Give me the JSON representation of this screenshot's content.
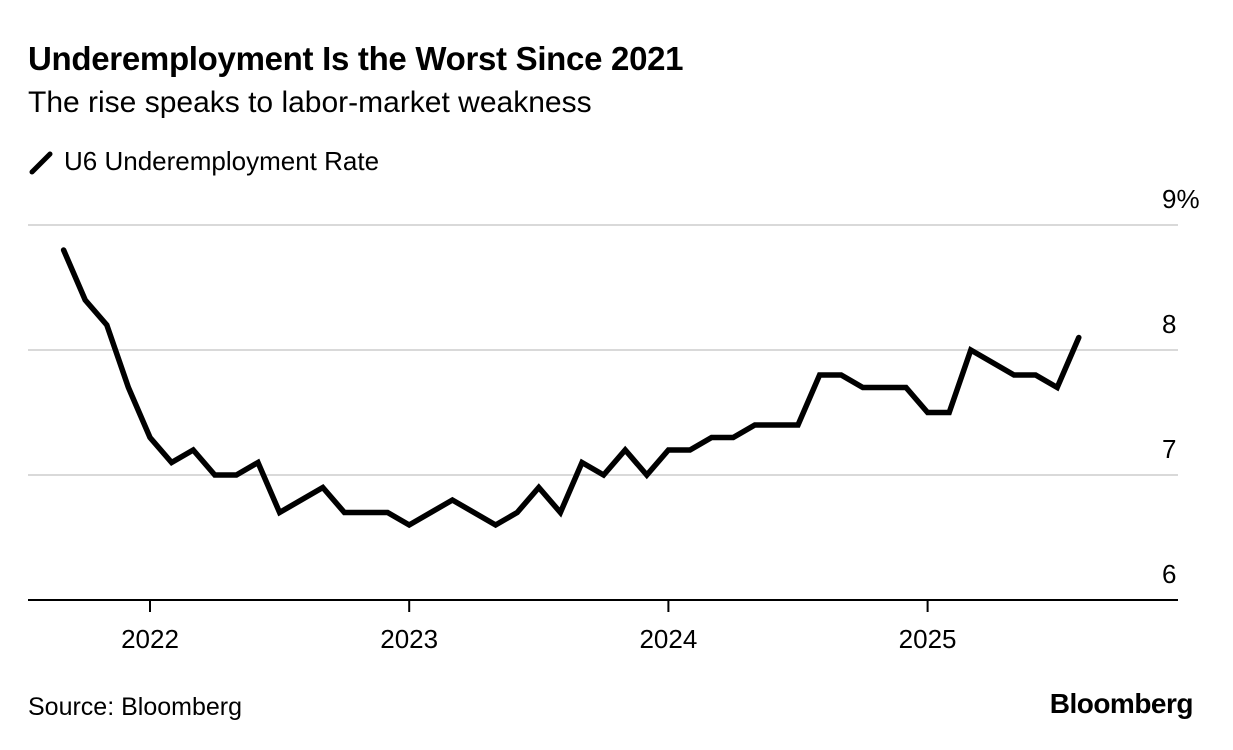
{
  "header": {
    "title": "Underemployment Is the Worst Since 2021",
    "subtitle": "The rise speaks to labor-market weakness"
  },
  "footer": {
    "source": "Source: Bloomberg",
    "brand": "Bloomberg"
  },
  "colors": {
    "line": "#000000",
    "grid": "#d9d9d9",
    "axis": "#000000"
  },
  "chart_data": {
    "type": "line",
    "title": "Underemployment Is the Worst Since 2021",
    "subtitle": "The rise speaks to labor-market weakness",
    "xlabel": "",
    "ylabel": "",
    "ylim": [
      6,
      9
    ],
    "yticks": [
      6,
      7,
      8,
      9
    ],
    "ytick_labels": [
      "6",
      "7",
      "8",
      "9%"
    ],
    "xticks": [
      "2022-01",
      "2023-01",
      "2024-01",
      "2025-01"
    ],
    "xtick_labels": [
      "2022",
      "2023",
      "2024",
      "2025"
    ],
    "grid": true,
    "legend_position": "top-left",
    "series": [
      {
        "name": "U6 Underemployment Rate",
        "x": [
          "2021-09",
          "2021-10",
          "2021-11",
          "2021-12",
          "2022-01",
          "2022-02",
          "2022-03",
          "2022-04",
          "2022-05",
          "2022-06",
          "2022-07",
          "2022-08",
          "2022-09",
          "2022-10",
          "2022-11",
          "2022-12",
          "2023-01",
          "2023-02",
          "2023-03",
          "2023-04",
          "2023-05",
          "2023-06",
          "2023-07",
          "2023-08",
          "2023-09",
          "2023-10",
          "2023-11",
          "2023-12",
          "2024-01",
          "2024-02",
          "2024-03",
          "2024-04",
          "2024-05",
          "2024-06",
          "2024-07",
          "2024-08",
          "2024-09",
          "2024-10",
          "2024-11",
          "2024-12",
          "2025-01",
          "2025-02",
          "2025-03",
          "2025-04",
          "2025-05",
          "2025-06",
          "2025-07",
          "2025-08"
        ],
        "values": [
          8.8,
          8.4,
          8.2,
          7.7,
          7.3,
          7.1,
          7.2,
          7.0,
          7.0,
          7.1,
          6.7,
          6.8,
          6.9,
          6.7,
          6.7,
          6.7,
          6.6,
          6.7,
          6.8,
          6.7,
          6.6,
          6.7,
          6.9,
          6.7,
          7.1,
          7.0,
          7.2,
          7.0,
          7.2,
          7.2,
          7.3,
          7.3,
          7.4,
          7.4,
          7.4,
          7.8,
          7.8,
          7.7,
          7.7,
          7.7,
          7.5,
          7.5,
          8.0,
          7.9,
          7.8,
          7.8,
          7.7,
          8.1
        ]
      }
    ]
  }
}
